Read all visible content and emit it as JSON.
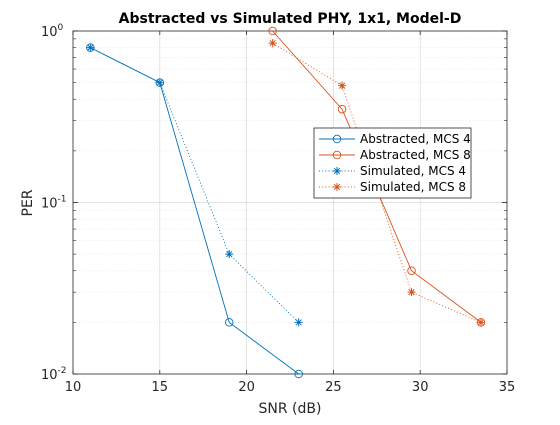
{
  "chart_data": {
    "type": "line",
    "title": "Abstracted vs Simulated PHY, 1x1, Model-D",
    "xlabel": "SNR (dB)",
    "ylabel": "PER",
    "xlim": [
      10,
      35
    ],
    "ylim": [
      0.01,
      1
    ],
    "yscale": "log",
    "grid": "on",
    "legend_position": "right-middle",
    "x_ticks": [
      10,
      15,
      20,
      25,
      30,
      35
    ],
    "x_tick_labels": [
      "10",
      "15",
      "20",
      "25",
      "30",
      "35"
    ],
    "y_ticks": [
      0.01,
      0.1,
      1
    ],
    "y_tick_labels": [
      {
        "base": "10",
        "exp": "-2"
      },
      {
        "base": "10",
        "exp": "-1"
      },
      {
        "base": "10",
        "exp": "0"
      }
    ],
    "series": [
      {
        "name": "Abstracted, MCS 4",
        "color": "#0072BD",
        "line": "solid",
        "marker": "circle",
        "x": [
          11,
          15,
          19,
          23
        ],
        "y": [
          0.8,
          0.5,
          0.02,
          0.01
        ]
      },
      {
        "name": "Abstracted, MCS 8",
        "color": "#D95319",
        "line": "solid",
        "marker": "circle",
        "x": [
          21.5,
          25.5,
          29.5,
          33.5
        ],
        "y": [
          1.0,
          0.35,
          0.04,
          0.02
        ]
      },
      {
        "name": "Simulated, MCS 4",
        "color": "#0072BD",
        "line": "dotted",
        "marker": "asterisk",
        "x": [
          11,
          15,
          19,
          23
        ],
        "y": [
          0.8,
          0.5,
          0.05,
          0.02
        ]
      },
      {
        "name": "Simulated, MCS 8",
        "color": "#D95319",
        "line": "dotted",
        "marker": "asterisk",
        "x": [
          21.5,
          25.5,
          29.5,
          33.5
        ],
        "y": [
          0.85,
          0.48,
          0.03,
          0.02
        ]
      }
    ]
  }
}
